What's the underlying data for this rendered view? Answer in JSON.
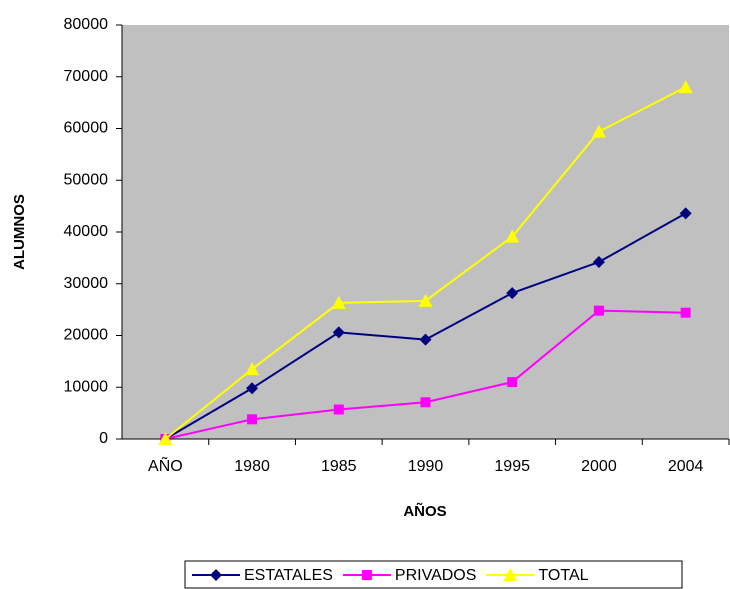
{
  "chart_data": {
    "type": "line",
    "y_label": "ALUMNOS",
    "x_label": "AÑOS",
    "categories": [
      "AÑO",
      "1980",
      "1985",
      "1990",
      "1995",
      "2000",
      "2004"
    ],
    "series": [
      {
        "name": "ESTATALES",
        "color": "#000080",
        "marker": "diamond",
        "values": [
          0,
          9800,
          20600,
          19200,
          28200,
          34200,
          43600
        ]
      },
      {
        "name": "PRIVADOS",
        "color": "#ff00ff",
        "marker": "square",
        "values": [
          0,
          3800,
          5700,
          7100,
          11000,
          24800,
          24400
        ]
      },
      {
        "name": "TOTAL",
        "color": "#ffff00",
        "marker": "triangle",
        "values": [
          0,
          13500,
          26300,
          26700,
          39100,
          59400,
          68000
        ]
      }
    ],
    "ylim": [
      0,
      80000
    ],
    "yticks": [
      0,
      10000,
      20000,
      30000,
      40000,
      50000,
      60000,
      70000,
      80000
    ],
    "plot_background": "#c0c0c0",
    "legend": "bottom"
  }
}
